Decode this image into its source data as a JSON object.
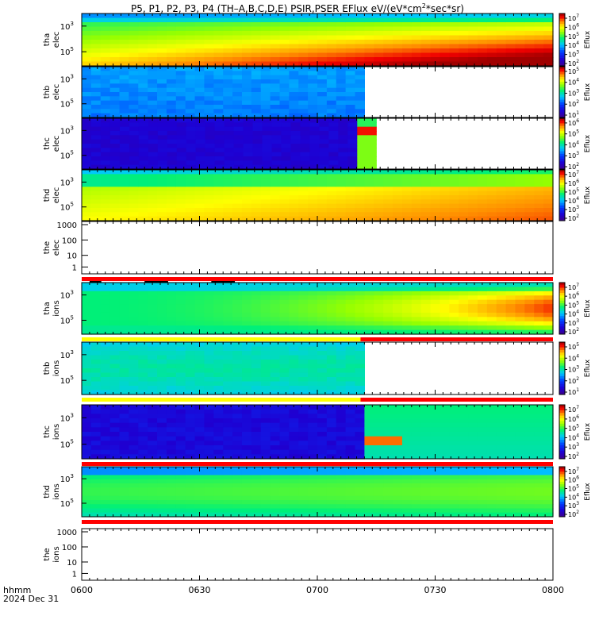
{
  "title": {
    "prefix": "P5, P1, P2, P3, P4 (TH–A,B,C,D,E) PSIR,PSER EFlux eV/(eV*cm",
    "sup": "2",
    "suffix": "*sec*sr)"
  },
  "footer": {
    "hhmm": "hhmm",
    "date": "2024 Dec 31"
  },
  "chart_data": {
    "type": "heatmap",
    "x_tick_labels": [
      "0600",
      "0630",
      "0700",
      "0730",
      "0800"
    ],
    "x_range_minutes": [
      0,
      120
    ],
    "colorbar_label": "Eflux",
    "panels": [
      {
        "name": "tha elec",
        "label": [
          "tha",
          "elec"
        ],
        "kind": "spec",
        "ytick_exps": [
          3,
          5
        ],
        "cb_exps": [
          2,
          3,
          4,
          5,
          6,
          7
        ],
        "data_end": 120,
        "pattern": "tha_elec"
      },
      {
        "name": "thb elec",
        "label": [
          "thb",
          "elec"
        ],
        "kind": "spec",
        "ytick_exps": [
          3,
          5
        ],
        "cb_exps": [
          1,
          2,
          3,
          4,
          5
        ],
        "data_end": 72,
        "pattern": "thb_elec"
      },
      {
        "name": "thc elec",
        "label": [
          "thc",
          "elec"
        ],
        "kind": "spec",
        "ytick_exps": [
          3,
          5
        ],
        "cb_exps": [
          2,
          3,
          4,
          5,
          6
        ],
        "data_end": 75,
        "pattern": "thc_elec"
      },
      {
        "name": "thd elec",
        "label": [
          "thd",
          "elec"
        ],
        "kind": "spec",
        "ytick_exps": [
          3,
          5
        ],
        "cb_exps": [
          2,
          3,
          4,
          5,
          6,
          7
        ],
        "data_end": 120,
        "pattern": "thd_elec"
      },
      {
        "name": "the elec",
        "label": [
          "the",
          "elec"
        ],
        "kind": "empty",
        "ytick_labels": [
          "1000",
          "100",
          "10",
          "1"
        ]
      },
      {
        "name": "tha ions",
        "label": [
          "tha",
          "ions"
        ],
        "kind": "spec",
        "ytick_exps": [
          3,
          5
        ],
        "cb_exps": [
          2,
          3,
          4,
          5,
          6,
          7
        ],
        "data_end": 120,
        "pattern": "tha_ions"
      },
      {
        "name": "thb ions",
        "label": [
          "thb",
          "ions"
        ],
        "kind": "spec",
        "ytick_exps": [
          3,
          5
        ],
        "cb_exps": [
          1,
          2,
          3,
          4,
          5
        ],
        "data_end": 72,
        "pattern": "thb_ions"
      },
      {
        "name": "thc ions",
        "label": [
          "thc",
          "ions"
        ],
        "kind": "spec",
        "ytick_exps": [
          3,
          5
        ],
        "cb_exps": [
          2,
          3,
          4,
          5,
          6,
          7
        ],
        "data_end": 120,
        "pattern": "thc_ions"
      },
      {
        "name": "thd ions",
        "label": [
          "thd",
          "ions"
        ],
        "kind": "spec",
        "ytick_exps": [
          3,
          5
        ],
        "cb_exps": [
          2,
          3,
          4,
          5,
          6,
          7
        ],
        "data_end": 120,
        "pattern": "thd_ions"
      },
      {
        "name": "the ions",
        "label": [
          "the",
          "ions"
        ],
        "kind": "empty",
        "ytick_labels": [
          "1000",
          "100",
          "10",
          "1"
        ]
      }
    ],
    "mode_bars": [
      {
        "after_panel": "the elec",
        "segments": [
          {
            "from": 0,
            "to": 120,
            "color": "#ff0000"
          }
        ]
      },
      {
        "after_panel": "tha ions",
        "segments": [
          {
            "from": 0,
            "to": 71,
            "color": "#ffff00"
          },
          {
            "from": 71,
            "to": 120,
            "color": "#ff0000"
          }
        ]
      },
      {
        "after_panel": "thb ions",
        "segments": [
          {
            "from": 0,
            "to": 71,
            "color": "#ffff00"
          },
          {
            "from": 71,
            "to": 120,
            "color": "#ff0000"
          }
        ]
      },
      {
        "after_panel": "thc ions",
        "segments": [
          {
            "from": 0,
            "to": 120,
            "color": "#ff0000"
          }
        ]
      },
      {
        "after_panel": "thd ions",
        "segments": [
          {
            "from": 0,
            "to": 120,
            "color": "#ff0000"
          }
        ]
      }
    ],
    "gap_marks": [
      {
        "from": 2,
        "to": 5
      },
      {
        "from": 16,
        "to": 22
      },
      {
        "from": 33,
        "to": 39
      }
    ]
  }
}
